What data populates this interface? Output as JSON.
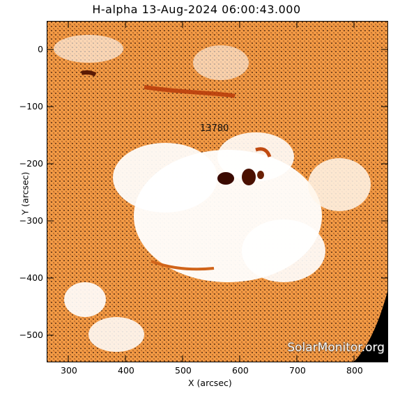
{
  "title": "H-alpha 13-Aug-2024 06:00:43.000",
  "x_axis_label": "X (arcsec)",
  "y_axis_label": "Y (arcsec)",
  "x_ticks": [
    "300",
    "400",
    "500",
    "600",
    "700",
    "800"
  ],
  "y_ticks": [
    "0",
    "−100",
    "−200",
    "−300",
    "−400",
    "−500"
  ],
  "region_label": "13780",
  "watermark": "SolarMonitor.org",
  "colors": {
    "field": "#f08a30",
    "bright": "#ffffff",
    "dark": "#3a0a00",
    "space": "#000000"
  }
}
